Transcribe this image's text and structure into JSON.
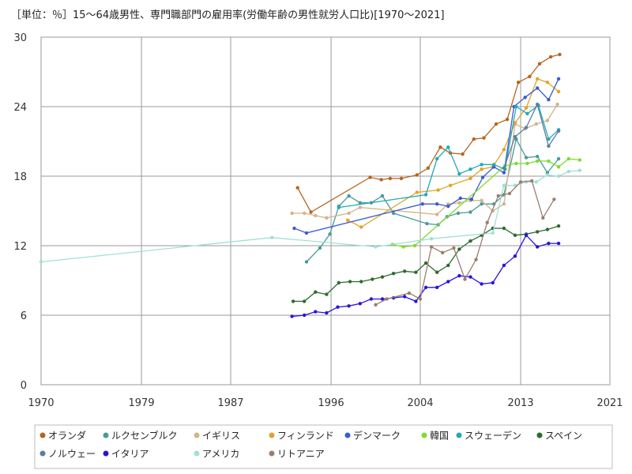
{
  "chart_data": {
    "type": "line",
    "title": "［単位：％］15～64歳男性、専門職部門の雇用率(労働年齢の男性就労人口比)[1970～2021]",
    "xlabel": "",
    "ylabel": "",
    "xlim": [
      1970,
      2021
    ],
    "ylim": [
      0,
      30
    ],
    "x_ticks": [
      1970,
      1979,
      1987,
      1996,
      2004,
      2013,
      2021
    ],
    "y_ticks": [
      0,
      6,
      12,
      18,
      24,
      30
    ],
    "grid": true,
    "legend_position": "bottom",
    "series": [
      {
        "name": "オランダ",
        "color": "#b5651d",
        "points": [
          [
            1993,
            17.0
          ],
          [
            1994.2,
            14.9
          ],
          [
            1999.5,
            17.9
          ],
          [
            2000.5,
            17.7
          ],
          [
            2001.3,
            17.8
          ],
          [
            2002.3,
            17.8
          ],
          [
            2003.7,
            18.1
          ],
          [
            2004.7,
            18.7
          ],
          [
            2005.8,
            20.5
          ],
          [
            2006.7,
            20.0
          ],
          [
            2007.8,
            19.9
          ],
          [
            2008.8,
            21.2
          ],
          [
            2009.7,
            21.3
          ],
          [
            2010.8,
            22.5
          ],
          [
            2011.8,
            22.9
          ],
          [
            2012.8,
            26.1
          ],
          [
            2013.8,
            26.6
          ],
          [
            2014.7,
            27.7
          ],
          [
            2015.7,
            28.3
          ],
          [
            2016.5,
            28.5
          ]
        ]
      },
      {
        "name": "ルクセンブルク",
        "color": "#4a9a9a",
        "points": [
          [
            1993.8,
            10.6
          ],
          [
            1995,
            11.8
          ],
          [
            1995.9,
            13.0
          ],
          [
            1996.7,
            15.4
          ],
          [
            1997.6,
            16.3
          ],
          [
            1998.6,
            15.7
          ],
          [
            1999.6,
            15.7
          ],
          [
            2000.6,
            16.3
          ],
          [
            2001.6,
            14.8
          ],
          [
            2004.6,
            13.9
          ],
          [
            2005.6,
            13.8
          ],
          [
            2006.4,
            14.5
          ],
          [
            2007.4,
            14.8
          ],
          [
            2008.5,
            14.9
          ],
          [
            2009.5,
            15.6
          ],
          [
            2010.6,
            15.6
          ],
          [
            2011.5,
            16.4
          ],
          [
            2012.6,
            21.2
          ],
          [
            2013.5,
            19.6
          ],
          [
            2014.5,
            19.7
          ],
          [
            2015.4,
            18.3
          ],
          [
            2016.4,
            19.5
          ]
        ]
      },
      {
        "name": "イギリス",
        "color": "#d2b48c",
        "points": [
          [
            1992.5,
            14.8
          ],
          [
            1993.6,
            14.8
          ],
          [
            1994.6,
            14.6
          ],
          [
            1995.6,
            14.4
          ],
          [
            1997.6,
            14.8
          ],
          [
            1998.6,
            15.3
          ],
          [
            2005.5,
            14.7
          ],
          [
            2006.5,
            15.6
          ],
          [
            2007.5,
            15.7
          ],
          [
            2008.5,
            15.9
          ],
          [
            2009.5,
            15.9
          ],
          [
            2010.5,
            15.0
          ],
          [
            2011.5,
            15.6
          ],
          [
            2012.5,
            22.5
          ],
          [
            2013.4,
            22.1
          ],
          [
            2014.4,
            22.5
          ],
          [
            2015.4,
            22.8
          ],
          [
            2016.3,
            24.2
          ]
        ]
      },
      {
        "name": "フィンランド",
        "color": "#e0a526",
        "points": [
          [
            1997.5,
            14.2
          ],
          [
            1998.7,
            13.6
          ],
          [
            2003.7,
            16.6
          ],
          [
            2005.6,
            16.8
          ],
          [
            2006.7,
            17.2
          ],
          [
            2008.5,
            17.8
          ],
          [
            2009.5,
            18.6
          ],
          [
            2010.5,
            18.8
          ],
          [
            2011.5,
            20.3
          ],
          [
            2012.5,
            22.6
          ],
          [
            2013.5,
            23.9
          ],
          [
            2014.5,
            26.4
          ],
          [
            2015.4,
            26.1
          ],
          [
            2016.4,
            25.3
          ]
        ]
      },
      {
        "name": "デンマーク",
        "color": "#3d5ccc",
        "points": [
          [
            1992.7,
            13.5
          ],
          [
            1993.8,
            13.1
          ],
          [
            2004.2,
            15.6
          ],
          [
            2005.5,
            15.6
          ],
          [
            2006.5,
            15.4
          ],
          [
            2007.6,
            16.1
          ],
          [
            2008.6,
            16.0
          ],
          [
            2009.6,
            17.9
          ],
          [
            2010.6,
            18.8
          ],
          [
            2011.5,
            18.3
          ],
          [
            2012.4,
            24.0
          ],
          [
            2013.4,
            24.8
          ],
          [
            2014.5,
            25.6
          ],
          [
            2015.5,
            24.6
          ],
          [
            2016.4,
            26.4
          ]
        ]
      },
      {
        "name": "韓国",
        "color": "#7fdc2a",
        "points": [
          [
            2001.5,
            12.1
          ],
          [
            2002.5,
            11.9
          ],
          [
            2003.5,
            12.0
          ],
          [
            2011.6,
            18.9
          ],
          [
            2012.6,
            19.1
          ],
          [
            2013.6,
            19.1
          ],
          [
            2014.5,
            19.3
          ],
          [
            2015.5,
            19.3
          ],
          [
            2016.4,
            18.8
          ],
          [
            2017.3,
            19.5
          ],
          [
            2018.3,
            19.4
          ]
        ]
      },
      {
        "name": "スウェーデン",
        "color": "#22aab7",
        "points": [
          [
            1996.7,
            15.3
          ],
          [
            2004.5,
            16.4
          ],
          [
            2005.5,
            19.5
          ],
          [
            2006.5,
            20.5
          ],
          [
            2007.5,
            18.2
          ],
          [
            2008.5,
            18.6
          ],
          [
            2009.5,
            19.0
          ],
          [
            2010.6,
            19.0
          ],
          [
            2011.6,
            18.6
          ],
          [
            2012.6,
            24.0
          ],
          [
            2013.6,
            23.4
          ],
          [
            2014.6,
            24.1
          ],
          [
            2015.5,
            21.2
          ],
          [
            2016.4,
            22.0
          ]
        ]
      },
      {
        "name": "スペイン",
        "color": "#2e6b2e",
        "points": [
          [
            1992.6,
            7.2
          ],
          [
            1993.6,
            7.2
          ],
          [
            1994.6,
            8.0
          ],
          [
            1995.6,
            7.8
          ],
          [
            1996.7,
            8.8
          ],
          [
            1997.7,
            8.9
          ],
          [
            1998.7,
            8.9
          ],
          [
            1999.7,
            9.1
          ],
          [
            2000.6,
            9.3
          ],
          [
            2001.6,
            9.6
          ],
          [
            2002.6,
            9.8
          ],
          [
            2003.6,
            9.7
          ],
          [
            2004.5,
            10.5
          ],
          [
            2005.5,
            9.7
          ],
          [
            2006.5,
            10.3
          ],
          [
            2007.5,
            11.7
          ],
          [
            2008.5,
            12.4
          ],
          [
            2009.5,
            12.9
          ],
          [
            2010.5,
            13.5
          ],
          [
            2011.5,
            13.5
          ],
          [
            2012.5,
            12.9
          ],
          [
            2013.5,
            13.0
          ],
          [
            2014.5,
            13.2
          ],
          [
            2015.4,
            13.4
          ],
          [
            2016.4,
            13.7
          ]
        ]
      },
      {
        "name": "ノルウェー",
        "color": "#5a7ea6",
        "points": [
          [
            2011.5,
            18.7
          ],
          [
            2012.5,
            21.4
          ],
          [
            2013.5,
            22.2
          ],
          [
            2014.5,
            24.2
          ],
          [
            2015.5,
            20.6
          ],
          [
            2016.4,
            21.9
          ]
        ]
      },
      {
        "name": "イタリア",
        "color": "#2a14dc",
        "points": [
          [
            1992.5,
            5.9
          ],
          [
            1993.6,
            6.0
          ],
          [
            1994.6,
            6.3
          ],
          [
            1995.6,
            6.2
          ],
          [
            1996.6,
            6.7
          ],
          [
            1997.6,
            6.8
          ],
          [
            1998.6,
            7.0
          ],
          [
            1999.6,
            7.4
          ],
          [
            2000.6,
            7.4
          ],
          [
            2001.6,
            7.5
          ],
          [
            2002.6,
            7.6
          ],
          [
            2003.6,
            7.2
          ],
          [
            2004.5,
            8.4
          ],
          [
            2005.5,
            8.4
          ],
          [
            2006.5,
            8.9
          ],
          [
            2007.5,
            9.4
          ],
          [
            2008.5,
            9.3
          ],
          [
            2009.5,
            8.7
          ],
          [
            2010.5,
            8.8
          ],
          [
            2011.5,
            10.3
          ],
          [
            2012.5,
            11.1
          ],
          [
            2013.5,
            12.9
          ],
          [
            2014.5,
            11.9
          ],
          [
            2015.5,
            12.2
          ],
          [
            2016.4,
            12.2
          ]
        ]
      },
      {
        "name": "アメリカ",
        "color": "#9fe0d8",
        "points": [
          [
            1970,
            10.6
          ],
          [
            1990.7,
            12.7
          ],
          [
            2000,
            11.9
          ],
          [
            2005,
            12.6
          ],
          [
            2010.5,
            13.1
          ],
          [
            2011.5,
            17.2
          ],
          [
            2012.5,
            17.2
          ],
          [
            2013.5,
            17.5
          ],
          [
            2014.4,
            17.5
          ],
          [
            2015.4,
            18.1
          ],
          [
            2016.4,
            18.0
          ],
          [
            2017.3,
            18.4
          ],
          [
            2018.3,
            18.5
          ]
        ]
      },
      {
        "name": "リトアニア",
        "color": "#9c7e6e",
        "points": [
          [
            2000,
            6.9
          ],
          [
            2001,
            7.4
          ],
          [
            2003,
            7.9
          ],
          [
            2004,
            7.4
          ],
          [
            2005,
            11.9
          ],
          [
            2006,
            11.4
          ],
          [
            2007,
            11.8
          ],
          [
            2008,
            9.1
          ],
          [
            2009,
            10.8
          ],
          [
            2010,
            14.0
          ],
          [
            2011,
            16.3
          ],
          [
            2012,
            16.5
          ],
          [
            2013,
            17.5
          ],
          [
            2014,
            17.6
          ],
          [
            2015,
            14.4
          ],
          [
            2016,
            16.0
          ]
        ]
      }
    ]
  }
}
